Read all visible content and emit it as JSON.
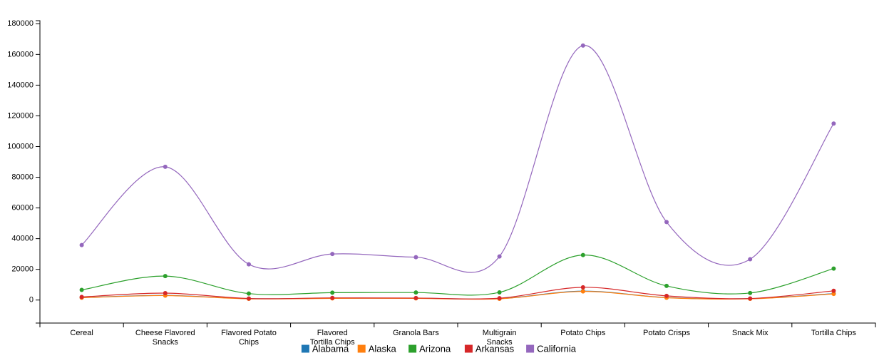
{
  "chart_data": {
    "type": "line",
    "curve": "smooth",
    "categories": [
      "Cereal",
      "Cheese Flavored Snacks",
      "Flavored Potato Chips",
      "Flavored Tortilla Chips",
      "Granola Bars",
      "Multigrain Snacks",
      "Potato Chips",
      "Potato Crisps",
      "Snack Mix",
      "Tortilla Chips"
    ],
    "y_ticks": [
      "0",
      "20000",
      "40000",
      "60000",
      "80000",
      "100000",
      "120000",
      "140000",
      "160000",
      "180000"
    ],
    "ylim": [
      -15000,
      182000
    ],
    "grid": false,
    "legend_position": "bottom",
    "series": [
      {
        "name": "Alabama",
        "color": "#1f77b4",
        "values": [
          1600,
          3000,
          900,
          1200,
          1200,
          900,
          5800,
          1600,
          900,
          4200
        ]
      },
      {
        "name": "Alaska",
        "color": "#ff7f0e",
        "values": [
          1500,
          2900,
          800,
          1100,
          1100,
          800,
          5600,
          1500,
          800,
          4000
        ]
      },
      {
        "name": "Arizona",
        "color": "#2ca02c",
        "values": [
          6600,
          15600,
          4200,
          4800,
          4900,
          5000,
          29300,
          9200,
          4600,
          20500
        ]
      },
      {
        "name": "Arkansas",
        "color": "#d62728",
        "values": [
          2000,
          4500,
          1000,
          1400,
          1300,
          1200,
          8300,
          2700,
          1000,
          6000
        ]
      },
      {
        "name": "California",
        "color": "#9467bd",
        "values": [
          35800,
          86800,
          23300,
          30000,
          27900,
          28400,
          165800,
          50800,
          26600,
          115000
        ]
      }
    ]
  }
}
